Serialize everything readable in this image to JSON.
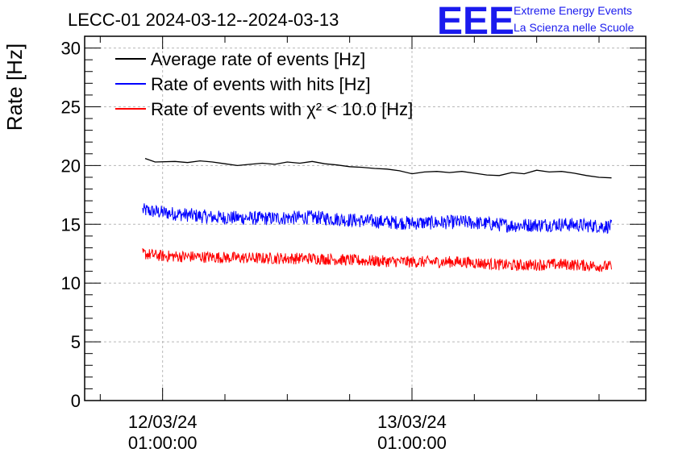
{
  "chart_data": {
    "type": "line",
    "title": "LECC-01 2024-03-12--2024-03-13",
    "ylabel": "Rate [Hz]",
    "xlabel": "",
    "ylim": [
      0,
      31
    ],
    "xlim": [
      -0.3125,
      1.9375
    ],
    "grid": true,
    "y_ticks": [
      0,
      5,
      10,
      15,
      20,
      25,
      30
    ],
    "x_ticks": [
      {
        "pos": 0,
        "line1": "12/03/24",
        "line2": "01:00:00"
      },
      {
        "pos": 1,
        "line1": "13/03/24",
        "line2": "01:00:00"
      }
    ],
    "x_unit": "days since 12/03/24 01:00:00",
    "legend_position": "top-left",
    "series": [
      {
        "name": "Average rate of events [Hz]",
        "color": "#000000",
        "noise": 0,
        "x": [
          -0.07,
          -0.03,
          0.05,
          0.1,
          0.15,
          0.2,
          0.25,
          0.3,
          0.35,
          0.4,
          0.45,
          0.5,
          0.55,
          0.6,
          0.65,
          0.7,
          0.75,
          0.8,
          0.85,
          0.9,
          0.95,
          1.0,
          1.05,
          1.1,
          1.15,
          1.2,
          1.25,
          1.3,
          1.35,
          1.4,
          1.45,
          1.5,
          1.55,
          1.6,
          1.65,
          1.7,
          1.75,
          1.8
        ],
        "y": [
          20.6,
          20.3,
          20.35,
          20.25,
          20.4,
          20.3,
          20.15,
          20.0,
          20.1,
          20.2,
          20.1,
          20.3,
          20.2,
          20.35,
          20.15,
          20.05,
          19.9,
          19.85,
          19.75,
          19.7,
          19.55,
          19.3,
          19.45,
          19.5,
          19.4,
          19.5,
          19.35,
          19.2,
          19.15,
          19.4,
          19.3,
          19.6,
          19.45,
          19.5,
          19.35,
          19.15,
          19.0,
          18.95
        ]
      },
      {
        "name": "Rate of events with hits [Hz]",
        "color": "#0000ff",
        "noise": 0.6,
        "x": [
          -0.08,
          0.0,
          0.2,
          0.4,
          0.6,
          0.8,
          1.0,
          1.2,
          1.4,
          1.6,
          1.8
        ],
        "y": [
          16.2,
          16.0,
          15.6,
          15.5,
          15.6,
          15.3,
          15.1,
          15.2,
          14.9,
          15.0,
          14.8
        ]
      },
      {
        "name": "Rate of events with χ² < 10.0 [Hz]",
        "color": "#ff0000",
        "noise": 0.5,
        "x": [
          -0.08,
          0.0,
          0.2,
          0.4,
          0.6,
          0.8,
          1.0,
          1.2,
          1.4,
          1.6,
          1.8
        ],
        "y": [
          12.5,
          12.3,
          12.2,
          12.1,
          12.1,
          11.9,
          11.8,
          11.8,
          11.5,
          11.6,
          11.4
        ]
      }
    ]
  },
  "logo": {
    "mark": "EEE",
    "line1": "Extreme Energy Events",
    "line2": "La Scienza nelle Scuole"
  }
}
